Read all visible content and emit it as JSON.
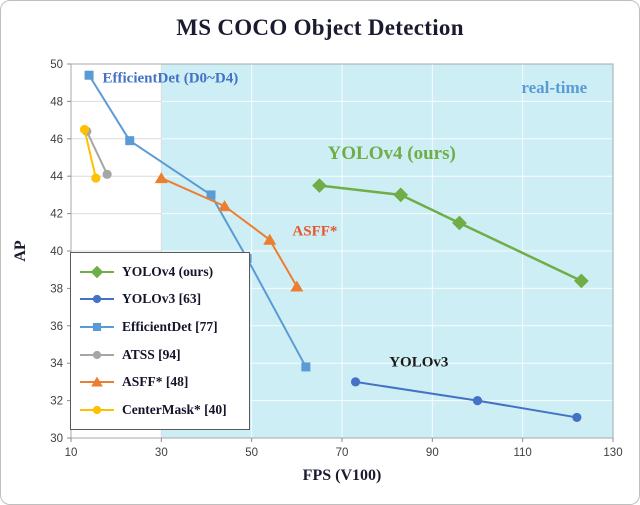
{
  "title": "MS COCO Object Detection",
  "chart_data": {
    "type": "line",
    "title": "MS COCO Object Detection",
    "xlabel": "FPS (V100)",
    "ylabel": "AP",
    "xlim": [
      10,
      130
    ],
    "ylim": [
      30,
      50
    ],
    "x_ticks": [
      10,
      30,
      50,
      70,
      90,
      110,
      130
    ],
    "y_ticks": [
      30,
      32,
      34,
      36,
      38,
      40,
      42,
      44,
      46,
      48,
      50
    ],
    "grid": true,
    "legend_position": "lower-left",
    "realtime_region": {
      "x_start": 30,
      "color": "#cdeef5",
      "label": "real-time"
    },
    "series": [
      {
        "name": "YOLOv4 (ours)",
        "color": "#70ad47",
        "marker": "diamond",
        "points": [
          [
            65,
            43.5
          ],
          [
            83,
            43.0
          ],
          [
            96,
            41.5
          ],
          [
            123,
            38.4
          ]
        ]
      },
      {
        "name": "YOLOv3 [63]",
        "color": "#4472c4",
        "marker": "circle",
        "points": [
          [
            73,
            33.0
          ],
          [
            100,
            32.0
          ],
          [
            122,
            31.1
          ]
        ]
      },
      {
        "name": "EfficientDet [77]",
        "color": "#5b9bd5",
        "marker": "square",
        "points": [
          [
            14,
            49.4
          ],
          [
            23,
            45.9
          ],
          [
            41,
            43.0
          ],
          [
            49,
            39.6
          ],
          [
            62,
            33.8
          ]
        ]
      },
      {
        "name": "ATSS [94]",
        "color": "#a6a6a6",
        "marker": "circle",
        "points": [
          [
            13.5,
            46.4
          ],
          [
            18,
            44.1
          ]
        ]
      },
      {
        "name": "ASFF* [48]",
        "color": "#ed7d31",
        "marker": "triangle",
        "points": [
          [
            30,
            43.9
          ],
          [
            44,
            42.4
          ],
          [
            54,
            40.6
          ],
          [
            60,
            38.1
          ]
        ]
      },
      {
        "name": "CenterMask* [40]",
        "color": "#ffc000",
        "marker": "circle",
        "points": [
          [
            13,
            46.5
          ],
          [
            15.5,
            43.9
          ]
        ]
      }
    ],
    "annotations": [
      {
        "text": "EfficientDet (D0~D4)",
        "color": "#4472c4",
        "x": 32,
        "y": 49.2,
        "size": 15
      },
      {
        "text": "real-time",
        "color": "#5b9bd5",
        "x": 117,
        "y": 48.7,
        "size": 17
      },
      {
        "text": "YOLOv4 (ours)",
        "color": "#70ad47",
        "x": 81,
        "y": 45.2,
        "size": 19
      },
      {
        "text": "ASFF*",
        "color": "#e8552d",
        "x": 64,
        "y": 41.0,
        "size": 15
      },
      {
        "text": "YOLOv3",
        "color": "#1a1a1a",
        "x": 87,
        "y": 34.0,
        "size": 15
      }
    ]
  }
}
